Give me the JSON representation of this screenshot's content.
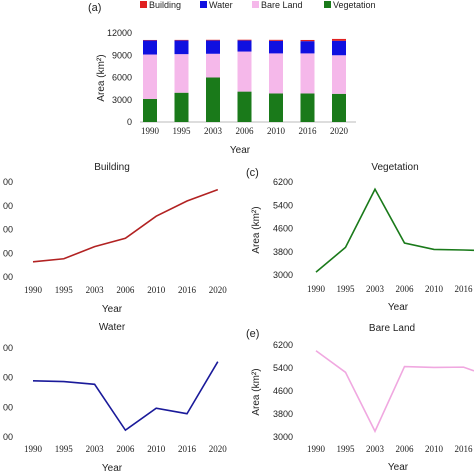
{
  "chart_data": [
    {
      "type": "bar",
      "stacked": true,
      "panel_label": "(a)",
      "xlabel": "Year",
      "ylabel": "Area (km²)",
      "ylim": [
        0,
        12000
      ],
      "yticks": [
        "0",
        "3000",
        "6000",
        "9000",
        "12000"
      ],
      "categories": [
        "1990",
        "1995",
        "2003",
        "2006",
        "2010",
        "2016",
        "2020"
      ],
      "legend_position": "top",
      "series": [
        {
          "name": "Vegetation",
          "color": "#1a7a1a",
          "values": [
            3100,
            3950,
            6000,
            4100,
            3850,
            3850,
            3800
          ]
        },
        {
          "name": "Bare Land",
          "color": "#f5b8ea",
          "values": [
            6000,
            5200,
            3200,
            5400,
            5400,
            5400,
            5200
          ]
        },
        {
          "name": "Water",
          "color": "#1010e0",
          "values": [
            1900,
            1850,
            1800,
            1500,
            1700,
            1650,
            1950
          ]
        },
        {
          "name": "Building",
          "color": "#e02020",
          "values": [
            60,
            70,
            85,
            95,
            130,
            160,
            250
          ]
        }
      ],
      "legend_order": [
        "Building",
        "Water",
        "Bare Land",
        "Vegetation"
      ]
    },
    {
      "type": "line",
      "title": "Building",
      "xlabel": "Year",
      "color": "#b22222",
      "x": [
        "1990",
        "1995",
        "2003",
        "2006",
        "2010",
        "2016",
        "2020"
      ],
      "values": [
        40,
        48,
        80,
        102,
        160,
        200,
        230
      ],
      "ylim": [
        0,
        250
      ],
      "yticks": [
        "00",
        "00",
        "00",
        "00",
        "00"
      ]
    },
    {
      "type": "line",
      "panel_label": "(c)",
      "title": "Vegetation",
      "xlabel": "Year",
      "ylabel": "Area (km²)",
      "color": "#1a7a1a",
      "x": [
        "1990",
        "1995",
        "2003",
        "2006",
        "2010",
        "2016"
      ],
      "values": [
        3100,
        3950,
        5950,
        4100,
        3880,
        3860
      ],
      "extends_to": 3850,
      "ylim": [
        3000,
        6200
      ],
      "yticks": [
        "3000",
        "3800",
        "4600",
        "5400",
        "6200"
      ]
    },
    {
      "type": "line",
      "title": "Water",
      "xlabel": "Year",
      "color": "#1a1a9a",
      "x": [
        "1990",
        "1995",
        "2003",
        "2006",
        "2010",
        "2016",
        "2020"
      ],
      "values": [
        1860,
        1855,
        1835,
        1500,
        1660,
        1620,
        2000
      ],
      "ylim": [
        1450,
        2100
      ],
      "yticks": [
        "00",
        "00",
        "00",
        "00"
      ]
    },
    {
      "type": "line",
      "panel_label": "(e)",
      "title": "Bare Land",
      "xlabel": "Year",
      "ylabel": "Area (km²)",
      "color": "#f0a8e0",
      "x": [
        "1990",
        "1995",
        "2003",
        "2006",
        "2010",
        "2016"
      ],
      "values": [
        6000,
        5250,
        3200,
        5450,
        5420,
        5430
      ],
      "extends_to": 5300,
      "ylim": [
        3000,
        6200
      ],
      "yticks": [
        "3000",
        "3800",
        "4600",
        "5400",
        "6200"
      ]
    }
  ]
}
